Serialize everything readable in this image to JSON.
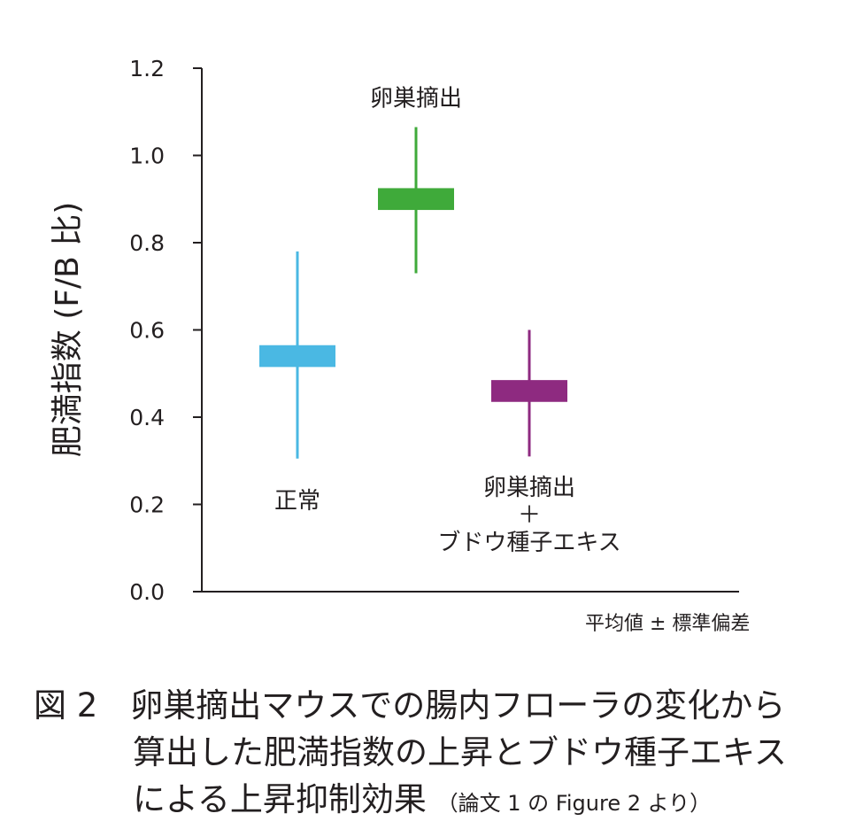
{
  "chart_data": {
    "type": "box",
    "ylabel": "肥満指数 (F/B 比)",
    "ylim": [
      0.0,
      1.2
    ],
    "yticks": [
      "0.0",
      "0.2",
      "0.4",
      "0.6",
      "0.8",
      "1.0",
      "1.2"
    ],
    "error_note": "平均値 ± 標準偏差",
    "series": [
      {
        "label_lines": [
          "正常"
        ],
        "mean": 0.54,
        "box_low": 0.515,
        "box_high": 0.565,
        "whisker_low": 0.305,
        "whisker_high": 0.78,
        "color": "#4ab8e3",
        "label_position": "below"
      },
      {
        "label_lines": [
          "卵巣摘出"
        ],
        "mean": 0.9,
        "box_low": 0.875,
        "box_high": 0.925,
        "whisker_low": 0.73,
        "whisker_high": 1.065,
        "color": "#3faa3a",
        "label_position": "above"
      },
      {
        "label_lines": [
          "卵巣摘出",
          "＋",
          "ブドウ種子エキス"
        ],
        "mean": 0.46,
        "box_low": 0.435,
        "box_high": 0.485,
        "whisker_low": 0.31,
        "whisker_high": 0.6,
        "color": "#8e2a80",
        "label_position": "below"
      }
    ]
  },
  "caption": {
    "line1": "図 2　卵巣摘出マウスでの腸内フローラの変化から",
    "line2": "算出した肥満指数の上昇とブドウ種子エキス",
    "line3": "による上昇抑制効果",
    "source": "（論文 1 の Figure 2 より）"
  }
}
